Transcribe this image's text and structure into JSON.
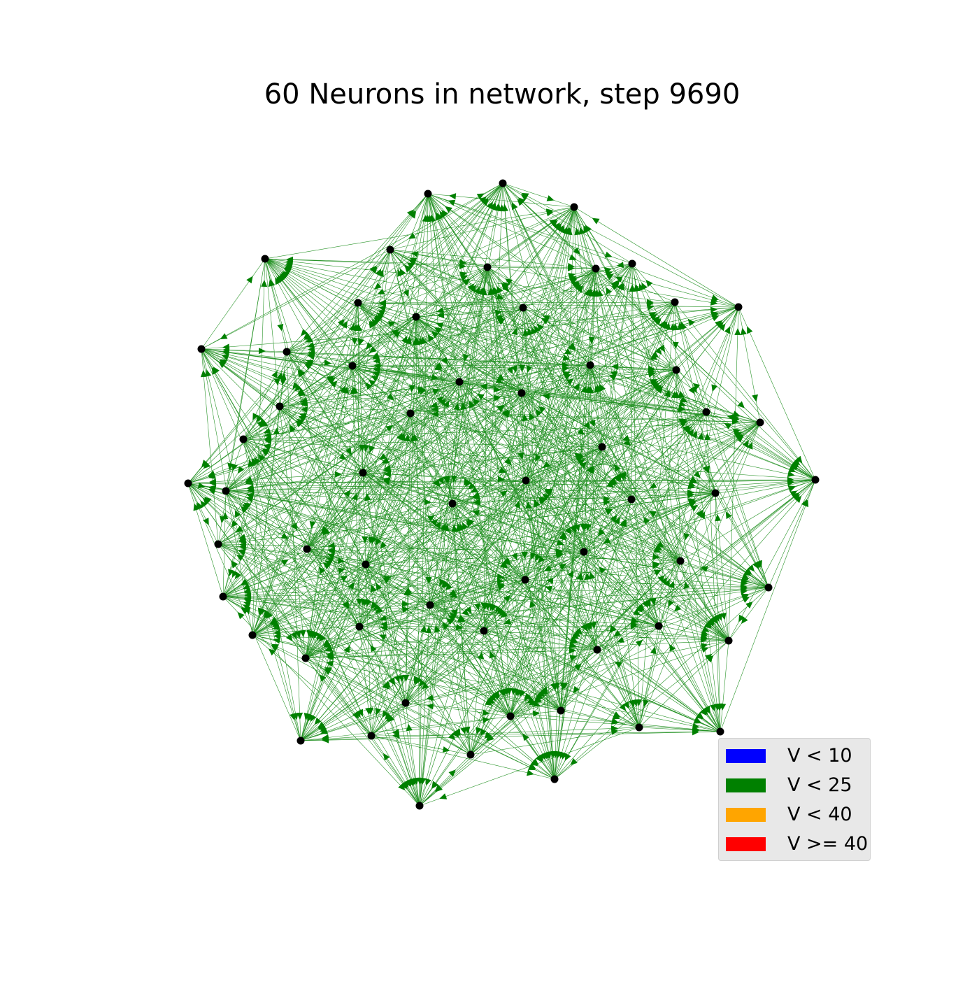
{
  "title": "60 Neurons in network, step 9690",
  "edge_color": "#008000",
  "node_color": "#000000",
  "nodes": [
    {
      "id": 0,
      "state": "V < 25"
    },
    {
      "id": 1,
      "state": "V < 25"
    },
    {
      "id": 2,
      "state": "V < 25"
    },
    {
      "id": 3,
      "state": "V < 25"
    },
    {
      "id": 4,
      "state": "V < 25"
    },
    {
      "id": 5,
      "state": "V < 25"
    },
    {
      "id": 6,
      "state": "V < 25"
    },
    {
      "id": 7,
      "state": "V < 25"
    },
    {
      "id": 8,
      "state": "V < 25"
    },
    {
      "id": 9,
      "state": "V < 25"
    },
    {
      "id": 10,
      "state": "V < 25"
    },
    {
      "id": 11,
      "state": "V < 25"
    },
    {
      "id": 12,
      "state": "V < 25"
    },
    {
      "id": 13,
      "state": "V < 25"
    },
    {
      "id": 14,
      "state": "V < 25"
    },
    {
      "id": 15,
      "state": "V < 25"
    },
    {
      "id": 16,
      "state": "V < 25"
    },
    {
      "id": 17,
      "state": "V < 25"
    },
    {
      "id": 18,
      "state": "V < 25"
    },
    {
      "id": 19,
      "state": "V < 25"
    },
    {
      "id": 20,
      "state": "V < 25"
    },
    {
      "id": 21,
      "state": "V < 25"
    },
    {
      "id": 22,
      "state": "V < 25"
    },
    {
      "id": 23,
      "state": "V < 25"
    },
    {
      "id": 24,
      "state": "V < 25"
    },
    {
      "id": 25,
      "state": "V < 25"
    },
    {
      "id": 26,
      "state": "V < 25"
    },
    {
      "id": 27,
      "state": "V < 25"
    },
    {
      "id": 28,
      "state": "V < 25"
    },
    {
      "id": 29,
      "state": "V < 25"
    },
    {
      "id": 30,
      "state": "V < 25"
    },
    {
      "id": 31,
      "state": "V < 25"
    },
    {
      "id": 32,
      "state": "V < 25"
    },
    {
      "id": 33,
      "state": "V < 25"
    },
    {
      "id": 34,
      "state": "V < 25"
    },
    {
      "id": 35,
      "state": "V < 25"
    },
    {
      "id": 36,
      "state": "V < 25"
    },
    {
      "id": 37,
      "state": "V < 25"
    },
    {
      "id": 38,
      "state": "V < 25"
    },
    {
      "id": 39,
      "state": "V < 25"
    },
    {
      "id": 40,
      "state": "V < 25"
    },
    {
      "id": 41,
      "state": "V < 25"
    },
    {
      "id": 42,
      "state": "V < 25"
    },
    {
      "id": 43,
      "state": "V < 25"
    },
    {
      "id": 44,
      "state": "V < 25"
    },
    {
      "id": 45,
      "state": "V < 25"
    },
    {
      "id": 46,
      "state": "V < 25"
    },
    {
      "id": 47,
      "state": "V < 25"
    },
    {
      "id": 48,
      "state": "V < 25"
    },
    {
      "id": 49,
      "state": "V < 25"
    },
    {
      "id": 50,
      "state": "V < 25"
    },
    {
      "id": 51,
      "state": "V < 25"
    },
    {
      "id": 52,
      "state": "V < 25"
    },
    {
      "id": 53,
      "state": "V < 25"
    },
    {
      "id": 54,
      "state": "V < 25"
    },
    {
      "id": 55,
      "state": "V < 25"
    },
    {
      "id": 56,
      "state": "V < 25"
    },
    {
      "id": 57,
      "state": "V < 25"
    },
    {
      "id": 58,
      "state": "V < 25"
    },
    {
      "id": 59,
      "state": "V < 25"
    }
  ],
  "legend": {
    "items": [
      {
        "label": "V < 10",
        "color": "#0000ff"
      },
      {
        "label": "V < 25",
        "color": "#008000"
      },
      {
        "label": "V < 40",
        "color": "#ffa500"
      },
      {
        "label": "V >= 40",
        "color": "#ff0000"
      }
    ]
  }
}
